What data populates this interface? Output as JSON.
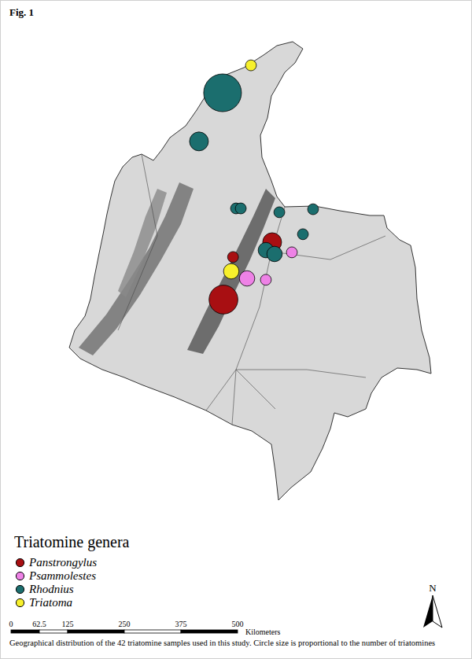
{
  "chart_data": {
    "type": "scatter",
    "title": "Fig. 1",
    "legend_title": "Triatomine genera",
    "caption": "Geographical distribution of the 42 triatomine samples used in this study. Circle size is proportional to the number of triatomines",
    "north_label": "N",
    "scale_bar": {
      "ticks": [
        0,
        62.5,
        125,
        250,
        375,
        500
      ],
      "unit": "Kilometers"
    },
    "xlim": [
      -81.3,
      -65.5
    ],
    "ylim": [
      -10,
      14
    ],
    "tick_labels": false,
    "legend": "lower left",
    "series": [
      {
        "name": "Panstrongylus",
        "color": "#a80f12",
        "x": [
          -72.19,
          -73.5,
          -73.82
        ],
        "values": [
          5.18,
          4.64,
          3.09
        ],
        "sizes": [
          3,
          1,
          7
        ]
      },
      {
        "name": "Psammolestes",
        "color": "#ee82e6",
        "x": [
          -71.53,
          -73.03,
          -72.4
        ],
        "values": [
          4.81,
          3.86,
          3.81
        ],
        "sizes": [
          1,
          2,
          1
        ]
      },
      {
        "name": "Rhodnius",
        "color": "#1b6e6e",
        "x": [
          -73.85,
          -74.64,
          -73.4,
          -73.24,
          -71.95,
          -70.82,
          -71.16,
          -72.4,
          -72.11
        ],
        "values": [
          10.62,
          8.85,
          6.41,
          6.41,
          6.27,
          6.38,
          5.47,
          4.89,
          4.75
        ],
        "sizes": [
          12,
          3,
          1,
          1,
          1,
          1,
          1,
          2,
          2
        ]
      },
      {
        "name": "Triatoma",
        "color": "#f7f02c",
        "x": [
          -72.9,
          -73.56
        ],
        "values": [
          11.62,
          4.12
        ],
        "sizes": [
          1,
          2
        ]
      }
    ]
  }
}
